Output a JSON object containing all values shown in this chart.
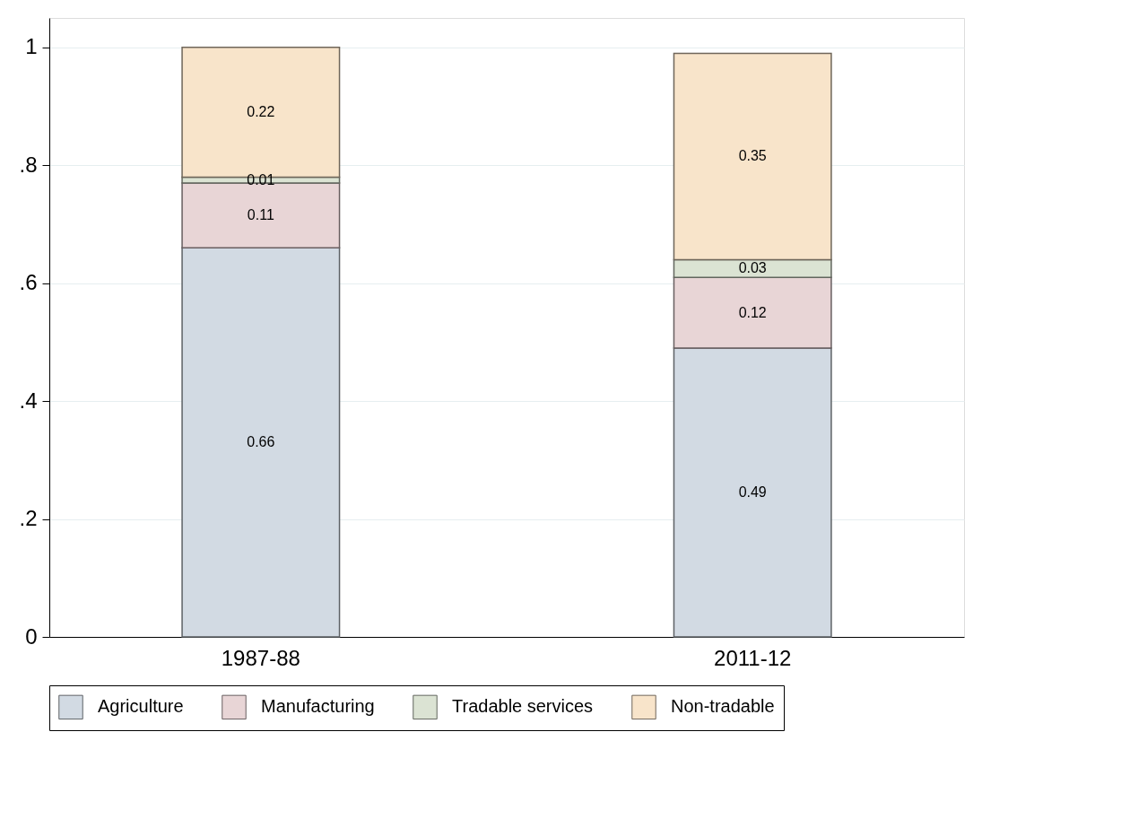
{
  "chart_data": {
    "type": "bar",
    "stacked": true,
    "data_labels": true,
    "categories": [
      "1987-88",
      "2011-12"
    ],
    "series": [
      {
        "name": "Agriculture",
        "color": "#d2dae3",
        "values": [
          0.66,
          0.49
        ]
      },
      {
        "name": "Manufacturing",
        "color": "#e8d5d6",
        "values": [
          0.11,
          0.12
        ]
      },
      {
        "name": "Tradable services",
        "color": "#dbe3d3",
        "values": [
          0.01,
          0.03
        ]
      },
      {
        "name": "Non-tradable",
        "color": "#f8e4ca",
        "values": [
          0.22,
          0.35
        ]
      }
    ],
    "ylim": [
      0,
      1.05
    ],
    "yticks": [
      0,
      {
        "value": 0.2,
        "label": ".2"
      },
      {
        "value": 0.4,
        "label": ".4"
      },
      {
        "value": 0.6,
        "label": ".6"
      },
      {
        "value": 0.8,
        "label": ".8"
      },
      1
    ],
    "grid": "y",
    "legend": "bottom"
  }
}
